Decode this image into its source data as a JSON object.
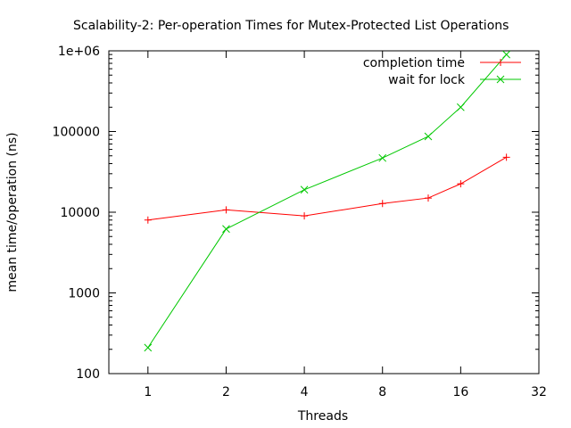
{
  "chart_data": {
    "type": "line",
    "title": "Scalability-2: Per-operation Times for Mutex-Protected List Operations",
    "xlabel": "Threads",
    "ylabel": "mean time/operation (ns)",
    "x_scale": "log2",
    "y_scale": "log10",
    "xlim": [
      0.7071,
      32
    ],
    "ylim": [
      100,
      1000000
    ],
    "x_ticks": [
      1,
      2,
      4,
      8,
      16,
      32
    ],
    "x_tick_labels": [
      "1",
      "2",
      "4",
      "8",
      "16",
      "32"
    ],
    "y_ticks": [
      100,
      1000,
      10000,
      100000,
      1000000
    ],
    "y_tick_labels": [
      "100",
      "1000",
      "10000",
      "100000",
      "1e+06"
    ],
    "grid": false,
    "legend_position": "top-right",
    "series": [
      {
        "name": "completion time",
        "color": "#ff0000",
        "marker": "+",
        "x": [
          1,
          2,
          4,
          8,
          12,
          16,
          24
        ],
        "y": [
          8000,
          10700,
          9000,
          12800,
          15000,
          22500,
          48000
        ]
      },
      {
        "name": "wait for lock",
        "color": "#00c800",
        "marker": "x",
        "x": [
          1,
          2,
          4,
          8,
          12,
          16,
          24
        ],
        "y": [
          210,
          6200,
          19000,
          47000,
          87000,
          200000,
          900000
        ]
      }
    ]
  }
}
